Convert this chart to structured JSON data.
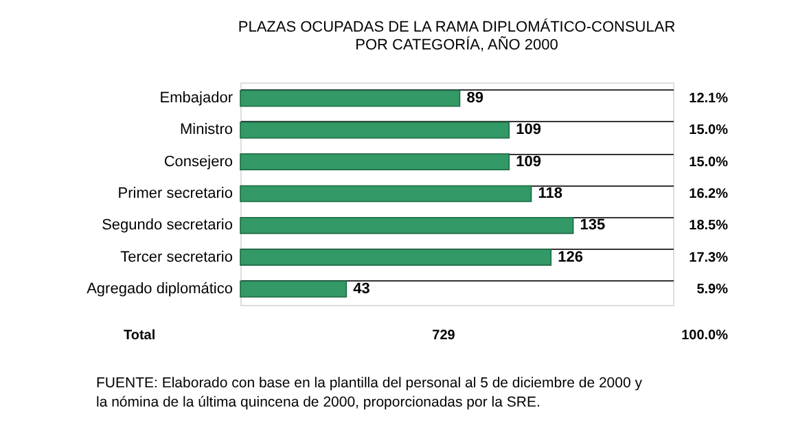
{
  "chart_data": {
    "type": "bar",
    "orientation": "horizontal",
    "title": "PLAZAS OCUPADAS DE LA RAMA DIPLOMÁTICO-CONSULAR\nPOR CATEGORÍA, AÑO 2000",
    "categories": [
      "Embajador",
      "Ministro",
      "Consejero",
      "Primer secretario",
      "Segundo secretario",
      "Tercer secretario",
      "Agregado diplomático"
    ],
    "values": [
      89,
      109,
      109,
      118,
      135,
      126,
      43
    ],
    "color": "#339966",
    "data_labels": true,
    "grid": "y",
    "annotations": [
      "12.1%",
      "15.0%",
      "15.0%",
      "16.2%",
      "18.5%",
      "17.3%",
      "5.9%",
      "Total",
      "729",
      "100.0%",
      "FUENTE:   Elaborado con base en la plantilla del personal al 5 de diciembre de 2000 y\n                la nómina de la última quincena de 2000, proporcionadas por la SRE."
    ]
  }
}
